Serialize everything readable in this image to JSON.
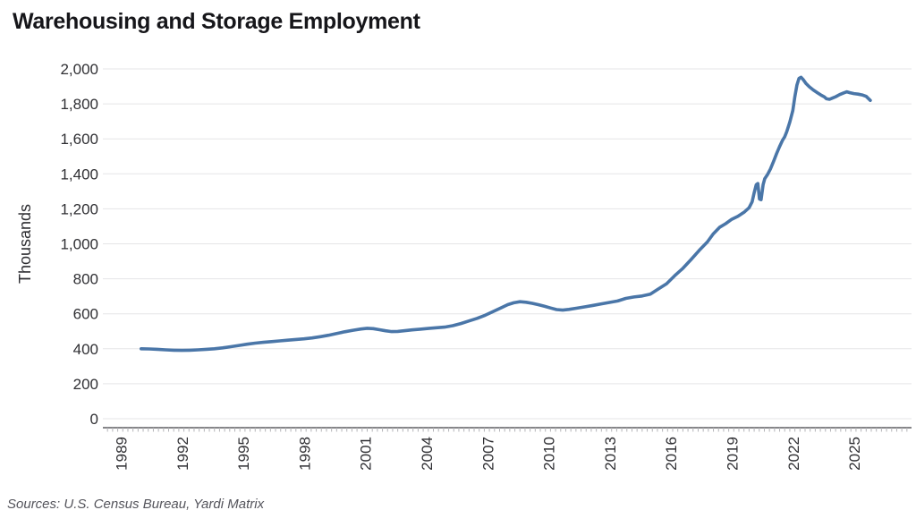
{
  "header": {
    "title": "Warehousing and Storage Employment"
  },
  "footer": {
    "source_note": "Sources: U.S. Census Bureau, Yardi Matrix"
  },
  "colors": {
    "background": "#ffffff",
    "title_text": "#16161a",
    "axis_text": "#2f2f33",
    "gridline": "#e5e5e7",
    "axis_line": "#3c3c42",
    "tick": "#b4b4b8",
    "line": "#4a76a8",
    "source_text": "#55555c"
  },
  "chart_data": {
    "type": "line",
    "title": "Warehousing and Storage Employment",
    "xlabel": "",
    "ylabel": "Thousands",
    "ylim": [
      0,
      2000
    ],
    "xlim": [
      1988.1,
      2027.8
    ],
    "grid": "horizontal",
    "legend": "none",
    "y_ticks": [
      0,
      200,
      400,
      600,
      800,
      1000,
      1200,
      1400,
      1600,
      1800,
      2000
    ],
    "x_tick_years": [
      1989,
      1992,
      1995,
      1998,
      2001,
      2004,
      2007,
      2010,
      2013,
      2016,
      2019,
      2022,
      2025
    ],
    "line_color": "#4a76a8",
    "source": "Sources: U.S. Census Bureau, Yardi Matrix",
    "series": [
      {
        "name": "Warehousing and Storage Employment (thousands)",
        "points": [
          [
            1990.0,
            400
          ],
          [
            1990.4,
            399
          ],
          [
            1990.8,
            397
          ],
          [
            1991.2,
            394
          ],
          [
            1991.6,
            392
          ],
          [
            1992.0,
            391
          ],
          [
            1992.4,
            392
          ],
          [
            1992.8,
            394
          ],
          [
            1993.2,
            397
          ],
          [
            1993.6,
            400
          ],
          [
            1994.0,
            405
          ],
          [
            1994.4,
            412
          ],
          [
            1994.8,
            419
          ],
          [
            1995.2,
            426
          ],
          [
            1995.6,
            432
          ],
          [
            1996.0,
            437
          ],
          [
            1996.4,
            441
          ],
          [
            1996.8,
            445
          ],
          [
            1997.2,
            449
          ],
          [
            1997.6,
            453
          ],
          [
            1998.0,
            457
          ],
          [
            1998.4,
            462
          ],
          [
            1998.8,
            469
          ],
          [
            1999.2,
            477
          ],
          [
            1999.6,
            487
          ],
          [
            2000.0,
            497
          ],
          [
            2000.4,
            506
          ],
          [
            2000.8,
            513
          ],
          [
            2001.1,
            517
          ],
          [
            2001.4,
            515
          ],
          [
            2001.7,
            509
          ],
          [
            2002.0,
            503
          ],
          [
            2002.3,
            498
          ],
          [
            2002.6,
            499
          ],
          [
            2002.9,
            503
          ],
          [
            2003.3,
            508
          ],
          [
            2003.7,
            512
          ],
          [
            2004.1,
            516
          ],
          [
            2004.5,
            520
          ],
          [
            2004.9,
            524
          ],
          [
            2005.3,
            532
          ],
          [
            2005.7,
            544
          ],
          [
            2006.1,
            559
          ],
          [
            2006.5,
            574
          ],
          [
            2006.9,
            592
          ],
          [
            2007.3,
            614
          ],
          [
            2007.7,
            636
          ],
          [
            2008.0,
            652
          ],
          [
            2008.3,
            663
          ],
          [
            2008.6,
            669
          ],
          [
            2008.9,
            666
          ],
          [
            2009.2,
            660
          ],
          [
            2009.5,
            652
          ],
          [
            2009.8,
            643
          ],
          [
            2010.1,
            633
          ],
          [
            2010.4,
            624
          ],
          [
            2010.7,
            621
          ],
          [
            2011.0,
            625
          ],
          [
            2011.4,
            632
          ],
          [
            2011.8,
            640
          ],
          [
            2012.2,
            648
          ],
          [
            2012.6,
            657
          ],
          [
            2013.0,
            665
          ],
          [
            2013.4,
            673
          ],
          [
            2013.8,
            688
          ],
          [
            2014.2,
            696
          ],
          [
            2014.6,
            702
          ],
          [
            2015.0,
            712
          ],
          [
            2015.4,
            742
          ],
          [
            2015.8,
            772
          ],
          [
            2016.2,
            818
          ],
          [
            2016.6,
            860
          ],
          [
            2017.0,
            910
          ],
          [
            2017.4,
            962
          ],
          [
            2017.8,
            1010
          ],
          [
            2018.1,
            1058
          ],
          [
            2018.4,
            1094
          ],
          [
            2018.7,
            1115
          ],
          [
            2019.0,
            1140
          ],
          [
            2019.3,
            1157
          ],
          [
            2019.6,
            1180
          ],
          [
            2019.85,
            1206
          ],
          [
            2020.0,
            1240
          ],
          [
            2020.1,
            1292
          ],
          [
            2020.2,
            1338
          ],
          [
            2020.28,
            1345
          ],
          [
            2020.36,
            1256
          ],
          [
            2020.44,
            1252
          ],
          [
            2020.54,
            1338
          ],
          [
            2020.62,
            1372
          ],
          [
            2020.75,
            1395
          ],
          [
            2020.9,
            1428
          ],
          [
            2021.05,
            1470
          ],
          [
            2021.2,
            1515
          ],
          [
            2021.35,
            1556
          ],
          [
            2021.5,
            1594
          ],
          [
            2021.6,
            1612
          ],
          [
            2021.7,
            1641
          ],
          [
            2021.85,
            1695
          ],
          [
            2022.0,
            1762
          ],
          [
            2022.1,
            1842
          ],
          [
            2022.2,
            1908
          ],
          [
            2022.3,
            1946
          ],
          [
            2022.4,
            1952
          ],
          [
            2022.5,
            1940
          ],
          [
            2022.65,
            1916
          ],
          [
            2022.8,
            1898
          ],
          [
            2023.0,
            1880
          ],
          [
            2023.2,
            1864
          ],
          [
            2023.4,
            1849
          ],
          [
            2023.55,
            1840
          ],
          [
            2023.65,
            1829
          ],
          [
            2023.8,
            1826
          ],
          [
            2023.95,
            1833
          ],
          [
            2024.1,
            1841
          ],
          [
            2024.3,
            1853
          ],
          [
            2024.5,
            1863
          ],
          [
            2024.65,
            1869
          ],
          [
            2024.8,
            1864
          ],
          [
            2025.0,
            1859
          ],
          [
            2025.2,
            1856
          ],
          [
            2025.4,
            1851
          ],
          [
            2025.6,
            1843
          ],
          [
            2025.8,
            1820
          ]
        ]
      }
    ]
  }
}
